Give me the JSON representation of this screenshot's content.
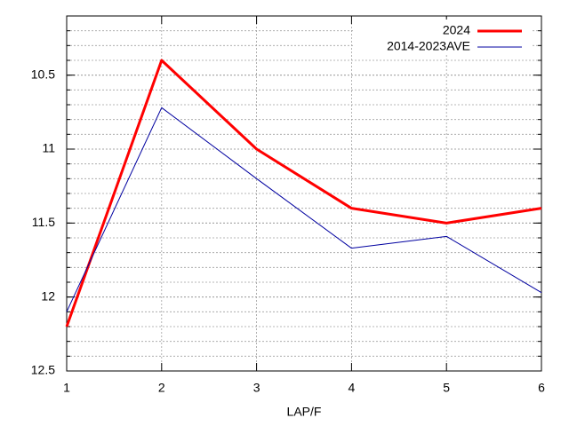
{
  "chart_data": {
    "type": "line",
    "x_label": "LAP/F",
    "x": [
      1,
      2,
      3,
      4,
      5,
      6
    ],
    "xlim": [
      1,
      6
    ],
    "xticks": [
      1,
      2,
      3,
      4,
      5,
      6
    ],
    "ylim": [
      12.5,
      10.1
    ],
    "yticks": [
      10.5,
      11,
      11.5,
      12,
      12.5
    ],
    "minor_grid_step": 0.1,
    "grid": true,
    "legend": "top-right",
    "series": [
      {
        "name": "2024",
        "color": "#ff0000",
        "values": [
          12.2,
          10.4,
          11.0,
          11.4,
          11.5,
          11.4
        ]
      },
      {
        "name": "2014-2023AVE",
        "color": "#0000a0",
        "values": [
          12.1,
          10.72,
          11.2,
          11.67,
          11.59,
          11.97
        ]
      }
    ]
  }
}
